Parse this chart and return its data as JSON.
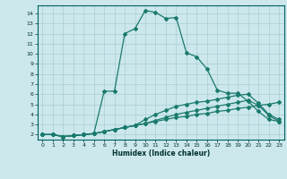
{
  "title": "",
  "xlabel": "Humidex (Indice chaleur)",
  "bg_color": "#cce8ec",
  "grid_color": "#a8cdd4",
  "line_color": "#1a7a6e",
  "xlim": [
    -0.5,
    23.5
  ],
  "ylim": [
    1.5,
    14.8
  ],
  "xticks": [
    0,
    1,
    2,
    3,
    4,
    5,
    6,
    7,
    8,
    9,
    10,
    11,
    12,
    13,
    14,
    15,
    16,
    17,
    18,
    19,
    20,
    21,
    22,
    23
  ],
  "yticks": [
    2,
    3,
    4,
    5,
    6,
    7,
    8,
    9,
    10,
    11,
    12,
    13,
    14
  ],
  "curve1_x": [
    0,
    1,
    2,
    3,
    4,
    5,
    6,
    7,
    8,
    9,
    10,
    11,
    12,
    13,
    14,
    15,
    16,
    17,
    18,
    19,
    20,
    21,
    22,
    23
  ],
  "curve1_y": [
    2.0,
    2.0,
    1.8,
    1.9,
    2.0,
    2.1,
    6.3,
    6.3,
    12.0,
    12.5,
    14.3,
    14.1,
    13.5,
    13.6,
    10.1,
    9.7,
    8.5,
    6.4,
    6.1,
    6.1,
    5.3,
    4.3,
    3.5,
    3.3
  ],
  "curve2_x": [
    0,
    1,
    2,
    3,
    4,
    5,
    6,
    7,
    8,
    9,
    10,
    11,
    12,
    13,
    14,
    15,
    16,
    17,
    18,
    19,
    20,
    21,
    22,
    23
  ],
  "curve2_y": [
    2.0,
    2.0,
    1.8,
    1.9,
    2.0,
    2.1,
    2.3,
    2.5,
    2.7,
    2.9,
    3.5,
    4.0,
    4.4,
    4.8,
    5.0,
    5.2,
    5.3,
    5.5,
    5.7,
    5.9,
    6.0,
    5.1,
    4.0,
    3.5
  ],
  "curve3_x": [
    0,
    1,
    2,
    3,
    4,
    5,
    6,
    7,
    8,
    9,
    10,
    11,
    12,
    13,
    14,
    15,
    16,
    17,
    18,
    19,
    20,
    21,
    22,
    23
  ],
  "curve3_y": [
    2.0,
    2.0,
    1.8,
    1.9,
    2.0,
    2.1,
    2.3,
    2.5,
    2.7,
    2.9,
    3.1,
    3.4,
    3.7,
    4.0,
    4.2,
    4.4,
    4.6,
    4.8,
    5.0,
    5.2,
    5.4,
    4.9,
    3.9,
    3.3
  ],
  "curve4_x": [
    0,
    1,
    2,
    3,
    4,
    5,
    6,
    7,
    8,
    9,
    10,
    11,
    12,
    13,
    14,
    15,
    16,
    17,
    18,
    19,
    20,
    21,
    22,
    23
  ],
  "curve4_y": [
    2.0,
    2.0,
    1.8,
    1.9,
    2.0,
    2.1,
    2.3,
    2.5,
    2.7,
    2.9,
    3.1,
    3.3,
    3.5,
    3.7,
    3.8,
    4.0,
    4.1,
    4.3,
    4.4,
    4.6,
    4.7,
    4.9,
    5.0,
    5.2
  ]
}
